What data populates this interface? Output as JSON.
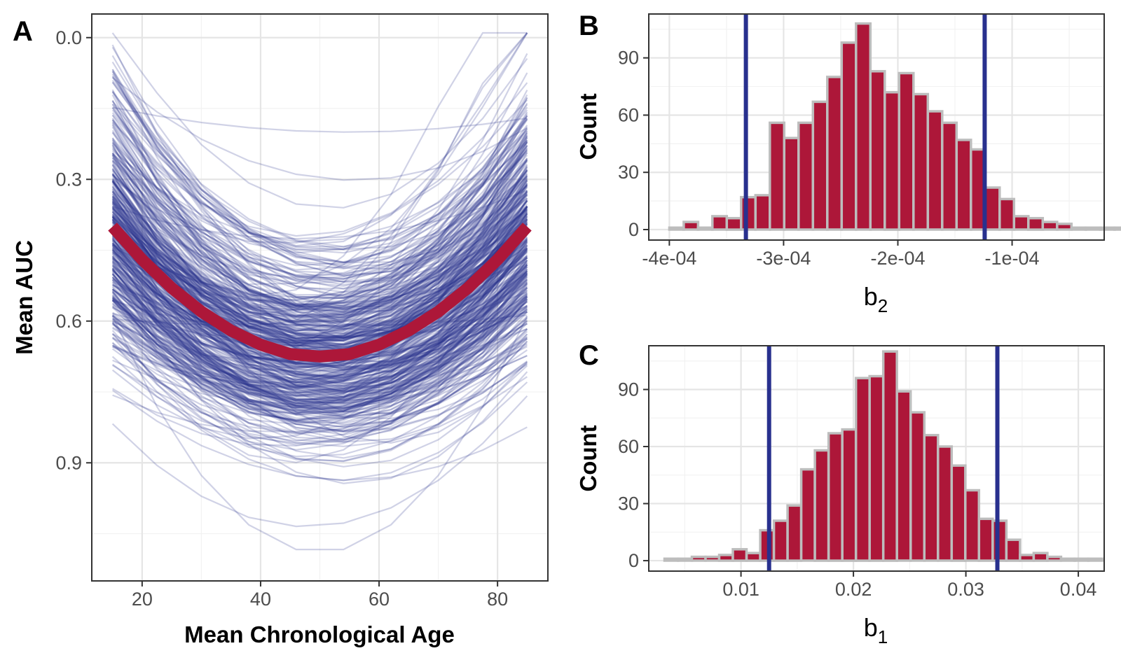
{
  "colors": {
    "bootstrap_lines": "#28308e",
    "mean_curve": "#ad1739",
    "histogram_fill": "#ad1739",
    "histogram_outline": "#bdbdbd",
    "ci_lines": "#28308e"
  },
  "chart_data": [
    {
      "panel": "A",
      "type": "line",
      "xlabel": "Mean Chronological Age",
      "ylabel": "Mean AUC",
      "xlim": [
        11.5,
        88.5
      ],
      "ylim": [
        1.15,
        -0.05
      ],
      "y_reversed": true,
      "xticks": [
        "20",
        "40",
        "60",
        "80"
      ],
      "xtick_values": [
        20,
        40,
        60,
        80
      ],
      "yticks": [
        "0.0",
        "0.3",
        "0.6",
        "0.9"
      ],
      "ytick_values": [
        0.0,
        0.3,
        0.6,
        0.9
      ],
      "grid": true,
      "series": [
        {
          "role": "mean fit",
          "color": "#ad1739",
          "x": [
            15,
            20,
            25,
            30,
            35,
            40,
            45,
            50,
            55,
            60,
            65,
            70,
            75,
            80,
            85
          ],
          "y": [
            0.4,
            0.47,
            0.53,
            0.58,
            0.62,
            0.65,
            0.67,
            0.675,
            0.67,
            0.65,
            0.62,
            0.58,
            0.53,
            0.47,
            0.4
          ]
        },
        {
          "role": "bootstrap fits (upper envelope)",
          "color": "#28308e",
          "x": [
            15,
            30,
            50,
            70,
            85
          ],
          "y": [
            0.15,
            0.17,
            0.2,
            0.2,
            0.18
          ]
        },
        {
          "role": "bootstrap fits (lower envelope)",
          "color": "#28308e",
          "x": [
            15,
            30,
            46,
            54,
            70,
            85
          ],
          "y": [
            0.61,
            0.94,
            1.09,
            1.09,
            0.95,
            0.69
          ]
        },
        {
          "role": "bootstrap fits (steepest end)",
          "color": "#28308e",
          "x": [
            15,
            30,
            50,
            70,
            85
          ],
          "y": [
            0.52,
            0.55,
            0.5,
            0.35,
            0.0
          ]
        }
      ],
      "n_bootstrap_lines": 1000
    },
    {
      "panel": "B",
      "type": "bar",
      "histogram": true,
      "xlabel": "b",
      "xlabel_subscript": "2",
      "ylabel": "Count",
      "xlim": [
        -0.000418,
        -1.94e-05
      ],
      "ylim": [
        -5.5,
        113
      ],
      "xticks": [
        "-4e-04",
        "-3e-04",
        "-2e-04",
        "-1e-04"
      ],
      "xtick_values": [
        -0.0004,
        -0.0003,
        -0.0002,
        -0.0001
      ],
      "yticks": [
        "0",
        "30",
        "60",
        "90"
      ],
      "ytick_values": [
        0,
        30,
        60,
        90
      ],
      "bin_start": -0.0004,
      "bin_width": 1.257e-05,
      "values": [
        1,
        4,
        1,
        7,
        6,
        17,
        18,
        56,
        48,
        56,
        67,
        80,
        98,
        108,
        83,
        72,
        82,
        71,
        62,
        56,
        47,
        42,
        22,
        16,
        7,
        6,
        4,
        3,
        1,
        1,
        1,
        1,
        1
      ],
      "ci_lines": [
        -0.000333,
        -0.000124
      ],
      "grid": true
    },
    {
      "panel": "C",
      "type": "bar",
      "histogram": true,
      "xlabel": "b",
      "xlabel_subscript": "1",
      "ylabel": "Count",
      "xlim": [
        0.0018,
        0.0423
      ],
      "ylim": [
        -5.5,
        113
      ],
      "xticks": [
        "0.01",
        "0.02",
        "0.03",
        "0.04"
      ],
      "xtick_values": [
        0.01,
        0.02,
        0.03,
        0.04
      ],
      "yticks": [
        "0",
        "30",
        "60",
        "90"
      ],
      "ytick_values": [
        0,
        30,
        60,
        90
      ],
      "bin_start": 0.0032,
      "bin_width": 0.001216,
      "values": [
        1,
        1,
        2,
        2,
        3,
        6,
        4,
        16,
        21,
        29,
        48,
        58,
        67,
        69,
        96,
        97,
        110,
        89,
        78,
        66,
        60,
        50,
        37,
        22,
        21,
        11,
        3,
        4,
        2,
        1,
        1,
        1
      ],
      "ci_lines": [
        0.0125,
        0.0328
      ],
      "grid": true
    }
  ]
}
